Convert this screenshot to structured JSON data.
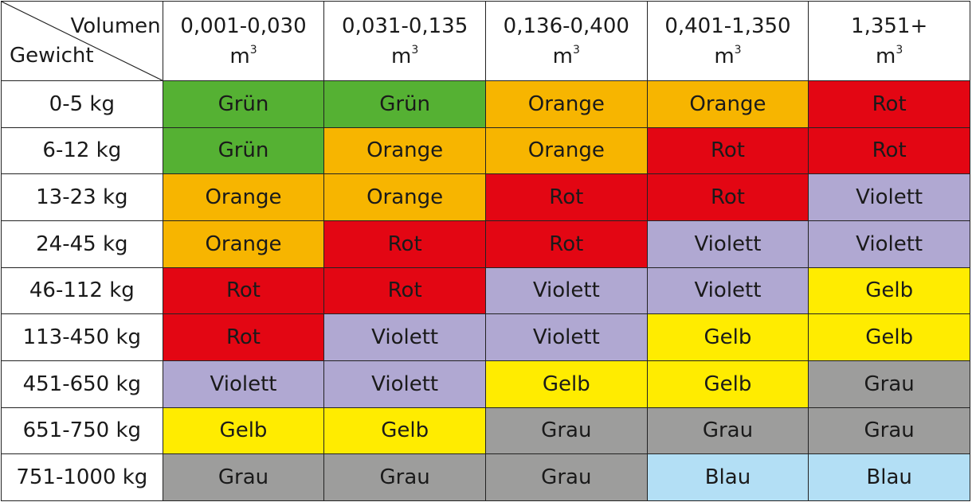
{
  "corner": {
    "volume_label": "Volumen",
    "weight_label": "Gewicht"
  },
  "columns": [
    {
      "range": "0,001-0,030",
      "unit": "m",
      "unit_exp": "3"
    },
    {
      "range": "0,031-0,135",
      "unit": "m",
      "unit_exp": "3"
    },
    {
      "range": "0,136-0,400",
      "unit": "m",
      "unit_exp": "3"
    },
    {
      "range": "0,401-1,350",
      "unit": "m",
      "unit_exp": "3"
    },
    {
      "range": "1,351+",
      "unit": "m",
      "unit_exp": "3"
    }
  ],
  "colors": {
    "Grün": "#55b133",
    "Orange": "#f7b500",
    "Rot": "#e30613",
    "Violett": "#b0a8d2",
    "Gelb": "#ffec00",
    "Grau": "#9d9d9c",
    "Blau": "#b3dff5"
  },
  "rows": [
    {
      "weight": "0-5 kg",
      "cells": [
        "Grün",
        "Grün",
        "Orange",
        "Orange",
        "Rot"
      ]
    },
    {
      "weight": "6-12 kg",
      "cells": [
        "Grün",
        "Orange",
        "Orange",
        "Rot",
        "Rot"
      ]
    },
    {
      "weight": "13-23 kg",
      "cells": [
        "Orange",
        "Orange",
        "Rot",
        "Rot",
        "Violett"
      ]
    },
    {
      "weight": "24-45 kg",
      "cells": [
        "Orange",
        "Rot",
        "Rot",
        "Violett",
        "Violett"
      ]
    },
    {
      "weight": "46-112 kg",
      "cells": [
        "Rot",
        "Rot",
        "Violett",
        "Violett",
        "Gelb"
      ]
    },
    {
      "weight": "113-450 kg",
      "cells": [
        "Rot",
        "Violett",
        "Violett",
        "Gelb",
        "Gelb"
      ]
    },
    {
      "weight": "451-650 kg",
      "cells": [
        "Violett",
        "Violett",
        "Gelb",
        "Gelb",
        "Grau"
      ]
    },
    {
      "weight": "651-750 kg",
      "cells": [
        "Gelb",
        "Gelb",
        "Grau",
        "Grau",
        "Grau"
      ]
    },
    {
      "weight": "751-1000 kg",
      "cells": [
        "Grau",
        "Grau",
        "Grau",
        "Blau",
        "Blau"
      ]
    }
  ]
}
